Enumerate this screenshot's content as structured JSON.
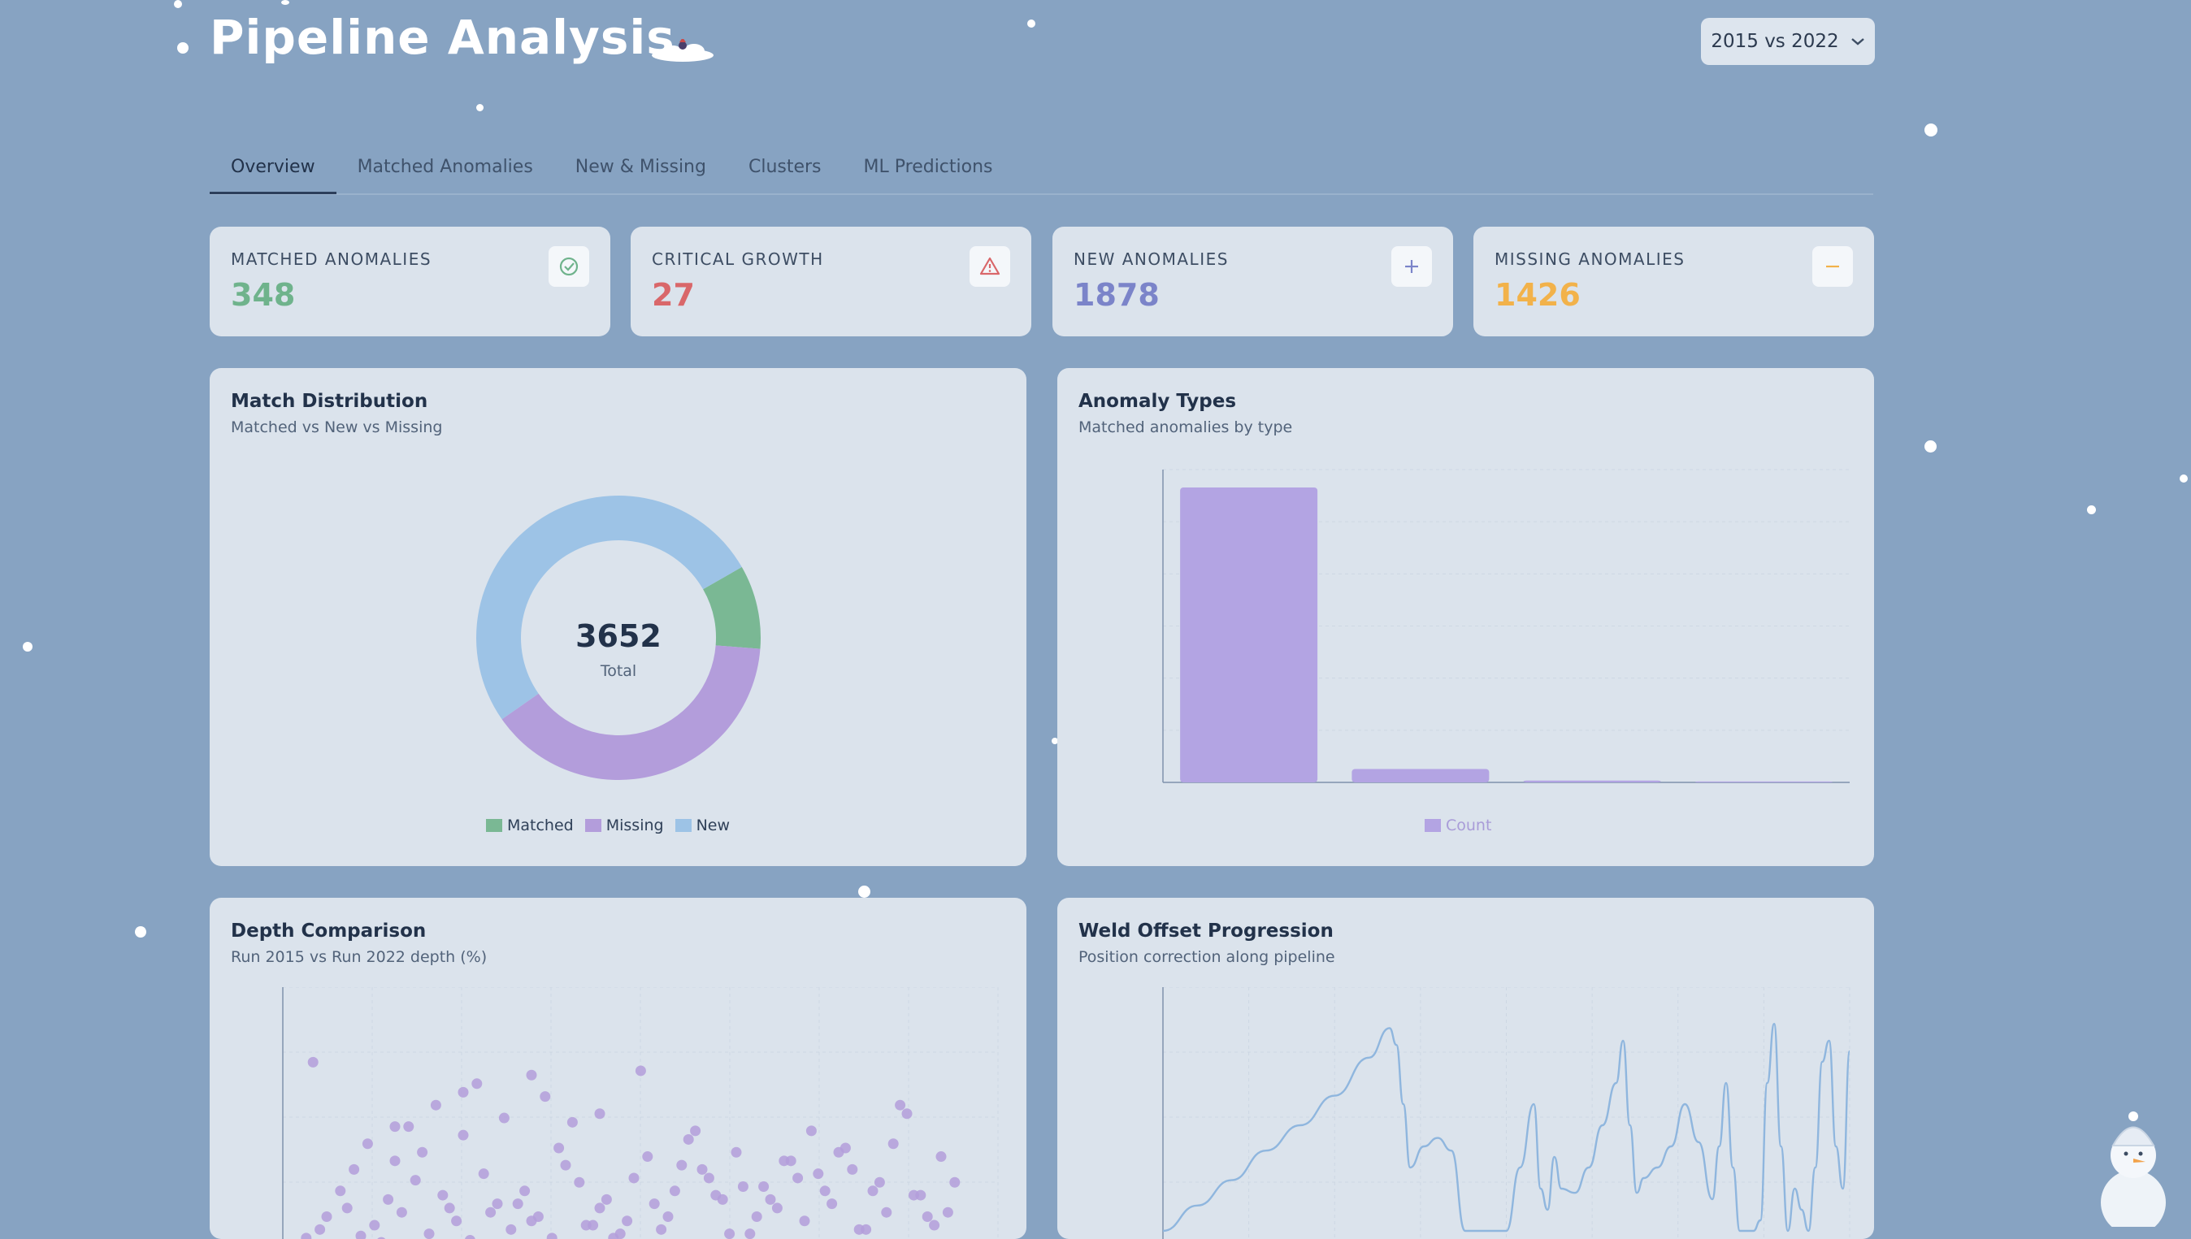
{
  "header": {
    "title": "Pipeline Analysis",
    "comparison_select": "2015 vs 2022"
  },
  "tabs": [
    "Overview",
    "Matched Anomalies",
    "New & Missing",
    "Clusters",
    "ML Predictions"
  ],
  "stats": {
    "matched": {
      "label": "MATCHED ANOMALIES",
      "value": "348",
      "color": "#6fb38c"
    },
    "critical": {
      "label": "CRITICAL GROWTH",
      "value": "27",
      "color": "#d9676a"
    },
    "new": {
      "label": "NEW ANOMALIES",
      "value": "1878",
      "color": "#7b84c9"
    },
    "missing": {
      "label": "MISSING ANOMALIES",
      "value": "1426",
      "color": "#f2b24a"
    }
  },
  "match_distribution": {
    "title": "Match Distribution",
    "subtitle": "Matched vs New vs Missing",
    "total": "3652",
    "total_label": "Total",
    "chart_data": {
      "type": "pie",
      "title": "Match Distribution",
      "categories": [
        "Matched",
        "Missing",
        "New"
      ],
      "values": [
        348,
        1426,
        1878
      ],
      "colors": [
        "#7ab894",
        "#b39ddb",
        "#9dc3e6"
      ]
    }
  },
  "anomaly_types": {
    "title": "Anomaly Types",
    "subtitle": "Matched anomalies by type",
    "legend": "Count",
    "chart_data": {
      "type": "bar",
      "title": "Anomaly Types",
      "categories": [
        "",
        "",
        "",
        ""
      ],
      "series": [
        {
          "name": "Count",
          "values": [
            330,
            15,
            2,
            1
          ]
        }
      ],
      "ylim": [
        0,
        350
      ],
      "color": "#b3a4e3"
    }
  },
  "depth_comparison": {
    "title": "Depth Comparison",
    "subtitle": "Run 2015 vs Run 2022 depth (%)",
    "chart_data": {
      "type": "scatter",
      "title": "Depth Comparison",
      "xlim": [
        0,
        100
      ],
      "ylim": [
        0,
        100
      ],
      "x": [
        2,
        4,
        6,
        5,
        8,
        10,
        7,
        12,
        14,
        9,
        13,
        16,
        18,
        20,
        11,
        22,
        24,
        15,
        26,
        28,
        30,
        17,
        32,
        19,
        34,
        36,
        21,
        38,
        40,
        23,
        42,
        25,
        44,
        46,
        27,
        48,
        50,
        29,
        52,
        31,
        54,
        56,
        33,
        58,
        35,
        60,
        62,
        37,
        64,
        39,
        66,
        68,
        41,
        70,
        43,
        72,
        74,
        45,
        76,
        47,
        78,
        80,
        49,
        82,
        51,
        84,
        86,
        53,
        88,
        55,
        90,
        92,
        57,
        94,
        59,
        96,
        61,
        63,
        65,
        67,
        69,
        71,
        73,
        75,
        77,
        79,
        81,
        83,
        85,
        87,
        89,
        91,
        93,
        95,
        97,
        3,
        15,
        25,
        35,
        45
      ],
      "y": [
        8,
        12,
        5,
        18,
        22,
        9,
        30,
        14,
        26,
        40,
        6,
        20,
        35,
        10,
        52,
        28,
        16,
        44,
        7,
        38,
        24,
        60,
        12,
        48,
        30,
        18,
        70,
        8,
        42,
        22,
        34,
        56,
        14,
        26,
        80,
        10,
        36,
        20,
        46,
        64,
        12,
        30,
        24,
        54,
        16,
        40,
        28,
        74,
        10,
        50,
        32,
        18,
        62,
        26,
        14,
        44,
        36,
        22,
        58,
        8,
        30,
        48,
        16,
        40,
        86,
        12,
        34,
        24,
        52,
        18,
        66,
        28,
        42,
        14,
        58,
        20,
        36,
        26,
        48,
        10,
        32,
        22,
        44,
        16,
        38,
        24,
        50,
        12,
        30,
        20,
        70,
        28,
        18,
        46,
        34,
        90,
        60,
        76,
        84,
        66
      ]
    }
  },
  "weld_offset": {
    "title": "Weld Offset Progression",
    "subtitle": "Position correction along pipeline",
    "chart_data": {
      "type": "line",
      "title": "Weld Offset Progression",
      "xlim": [
        0,
        100
      ],
      "ylim": [
        0,
        100
      ],
      "x": [
        0,
        5,
        10,
        15,
        20,
        25,
        30,
        33,
        34,
        35,
        36,
        38,
        40,
        42,
        44,
        45,
        46,
        47,
        48,
        50,
        52,
        54,
        55,
        56,
        57,
        58,
        60,
        62,
        64,
        66,
        67,
        68,
        69,
        70,
        72,
        74,
        76,
        78,
        80,
        81,
        82,
        83,
        84,
        86,
        87,
        88,
        89,
        90,
        91,
        92,
        93,
        94,
        95,
        96,
        97,
        98,
        99,
        100
      ],
      "y": [
        0,
        12,
        24,
        38,
        50,
        64,
        82,
        96,
        88,
        60,
        30,
        40,
        44,
        38,
        0,
        0,
        0,
        0,
        0,
        0,
        30,
        60,
        20,
        10,
        35,
        20,
        18,
        30,
        50,
        70,
        90,
        50,
        18,
        25,
        30,
        40,
        60,
        42,
        15,
        40,
        70,
        30,
        0,
        0,
        5,
        70,
        98,
        40,
        0,
        20,
        10,
        0,
        30,
        80,
        90,
        40,
        20,
        85
      ]
    }
  }
}
